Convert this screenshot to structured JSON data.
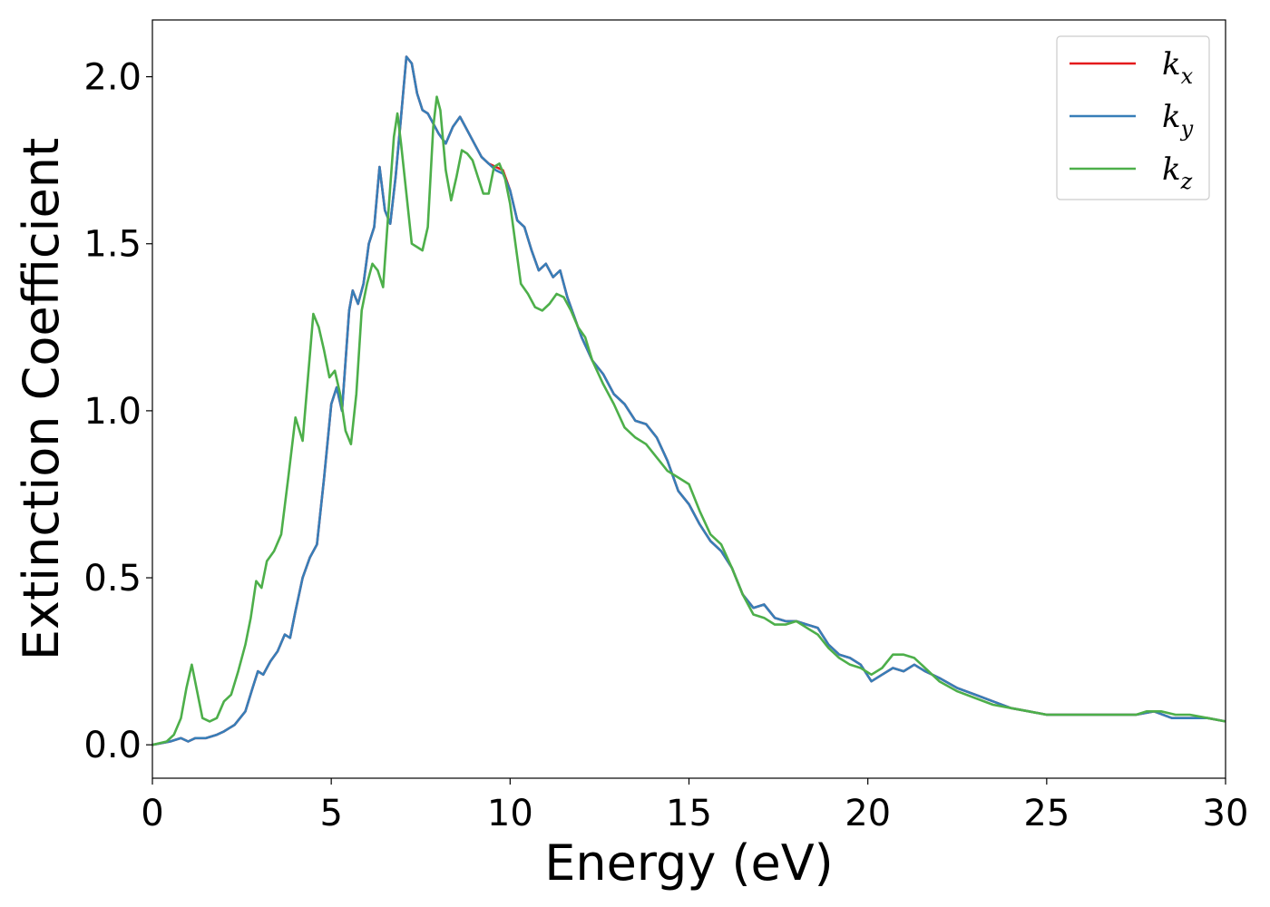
{
  "chart_data": {
    "type": "line",
    "xlabel": "Energy (eV)",
    "ylabel": "Extinction Coefficient",
    "xlim": [
      0,
      30
    ],
    "ylim": [
      -0.1,
      2.17
    ],
    "xticks": [
      0,
      5,
      10,
      15,
      20,
      25,
      30
    ],
    "xtick_labels": [
      "0",
      "5",
      "10",
      "15",
      "20",
      "25",
      "30"
    ],
    "yticks": [
      0.0,
      0.5,
      1.0,
      1.5,
      2.0
    ],
    "ytick_labels": [
      "0.0",
      "0.5",
      "1.0",
      "1.5",
      "2.0"
    ],
    "grid": false,
    "legend_position": "top-right",
    "series": [
      {
        "name": "k_x",
        "label_main": "k",
        "label_sub": "x",
        "color": "#e41a1c",
        "x": [
          0,
          0.5,
          0.8,
          1.0,
          1.2,
          1.5,
          1.8,
          2.0,
          2.3,
          2.6,
          2.8,
          2.95,
          3.1,
          3.3,
          3.5,
          3.7,
          3.85,
          4.0,
          4.2,
          4.4,
          4.6,
          4.8,
          5.0,
          5.15,
          5.3,
          5.5,
          5.6,
          5.75,
          5.9,
          6.05,
          6.2,
          6.35,
          6.5,
          6.65,
          6.8,
          6.95,
          7.1,
          7.25,
          7.4,
          7.55,
          7.7,
          7.85,
          8.0,
          8.2,
          8.4,
          8.6,
          8.8,
          9.0,
          9.2,
          9.4,
          9.6,
          9.8,
          10.0,
          10.2,
          10.4,
          10.6,
          10.8,
          11.0,
          11.2,
          11.4,
          11.6,
          11.8,
          12.0,
          12.3,
          12.6,
          12.9,
          13.2,
          13.5,
          13.8,
          14.1,
          14.4,
          14.7,
          15.0,
          15.3,
          15.6,
          15.9,
          16.2,
          16.5,
          16.8,
          17.1,
          17.4,
          17.7,
          18.0,
          18.3,
          18.6,
          18.9,
          19.2,
          19.5,
          19.8,
          20.1,
          20.4,
          20.7,
          21.0,
          21.3,
          21.6,
          22.0,
          22.5,
          23.0,
          23.5,
          24.0,
          24.5,
          25.0,
          25.5,
          26.0,
          26.5,
          27.0,
          27.5,
          28.0,
          28.5,
          29.0,
          29.5,
          30.0
        ],
        "y": [
          0.0,
          0.01,
          0.02,
          0.01,
          0.02,
          0.02,
          0.03,
          0.04,
          0.06,
          0.1,
          0.17,
          0.22,
          0.21,
          0.25,
          0.28,
          0.33,
          0.32,
          0.4,
          0.5,
          0.56,
          0.6,
          0.8,
          1.02,
          1.07,
          1.0,
          1.3,
          1.36,
          1.32,
          1.38,
          1.5,
          1.55,
          1.73,
          1.6,
          1.56,
          1.7,
          1.88,
          2.06,
          2.04,
          1.95,
          1.9,
          1.89,
          1.86,
          1.83,
          1.8,
          1.85,
          1.88,
          1.84,
          1.8,
          1.76,
          1.74,
          1.73,
          1.72,
          1.66,
          1.57,
          1.55,
          1.48,
          1.42,
          1.44,
          1.4,
          1.42,
          1.34,
          1.28,
          1.22,
          1.15,
          1.11,
          1.05,
          1.02,
          0.97,
          0.96,
          0.92,
          0.85,
          0.76,
          0.72,
          0.66,
          0.61,
          0.58,
          0.53,
          0.45,
          0.41,
          0.42,
          0.38,
          0.37,
          0.37,
          0.36,
          0.35,
          0.3,
          0.27,
          0.26,
          0.24,
          0.19,
          0.21,
          0.23,
          0.22,
          0.24,
          0.22,
          0.2,
          0.17,
          0.15,
          0.13,
          0.11,
          0.1,
          0.09,
          0.09,
          0.09,
          0.09,
          0.09,
          0.09,
          0.1,
          0.08,
          0.08,
          0.08,
          0.07
        ]
      },
      {
        "name": "k_y",
        "label_main": "k",
        "label_sub": "y",
        "color": "#377eb8",
        "x": [
          0,
          0.5,
          0.8,
          1.0,
          1.2,
          1.5,
          1.8,
          2.0,
          2.3,
          2.6,
          2.8,
          2.95,
          3.1,
          3.3,
          3.5,
          3.7,
          3.85,
          4.0,
          4.2,
          4.4,
          4.6,
          4.8,
          5.0,
          5.15,
          5.3,
          5.5,
          5.6,
          5.75,
          5.9,
          6.05,
          6.2,
          6.35,
          6.5,
          6.65,
          6.8,
          6.95,
          7.1,
          7.25,
          7.4,
          7.55,
          7.7,
          7.85,
          8.0,
          8.2,
          8.4,
          8.6,
          8.8,
          9.0,
          9.2,
          9.4,
          9.6,
          9.8,
          10.0,
          10.2,
          10.4,
          10.6,
          10.8,
          11.0,
          11.2,
          11.4,
          11.6,
          11.8,
          12.0,
          12.3,
          12.6,
          12.9,
          13.2,
          13.5,
          13.8,
          14.1,
          14.4,
          14.7,
          15.0,
          15.3,
          15.6,
          15.9,
          16.2,
          16.5,
          16.8,
          17.1,
          17.4,
          17.7,
          18.0,
          18.3,
          18.6,
          18.9,
          19.2,
          19.5,
          19.8,
          20.1,
          20.4,
          20.7,
          21.0,
          21.3,
          21.6,
          22.0,
          22.5,
          23.0,
          23.5,
          24.0,
          24.5,
          25.0,
          25.5,
          26.0,
          26.5,
          27.0,
          27.5,
          28.0,
          28.5,
          29.0,
          29.5,
          30.0
        ],
        "y": [
          0.0,
          0.01,
          0.02,
          0.01,
          0.02,
          0.02,
          0.03,
          0.04,
          0.06,
          0.1,
          0.17,
          0.22,
          0.21,
          0.25,
          0.28,
          0.33,
          0.32,
          0.4,
          0.5,
          0.56,
          0.6,
          0.8,
          1.02,
          1.07,
          1.0,
          1.3,
          1.36,
          1.32,
          1.38,
          1.5,
          1.55,
          1.73,
          1.6,
          1.56,
          1.7,
          1.88,
          2.06,
          2.04,
          1.95,
          1.9,
          1.89,
          1.86,
          1.83,
          1.8,
          1.85,
          1.88,
          1.84,
          1.8,
          1.76,
          1.74,
          1.72,
          1.71,
          1.66,
          1.57,
          1.55,
          1.48,
          1.42,
          1.44,
          1.4,
          1.42,
          1.34,
          1.28,
          1.22,
          1.15,
          1.11,
          1.05,
          1.02,
          0.97,
          0.96,
          0.92,
          0.85,
          0.76,
          0.72,
          0.66,
          0.61,
          0.58,
          0.53,
          0.45,
          0.41,
          0.42,
          0.38,
          0.37,
          0.37,
          0.36,
          0.35,
          0.3,
          0.27,
          0.26,
          0.24,
          0.19,
          0.21,
          0.23,
          0.22,
          0.24,
          0.22,
          0.2,
          0.17,
          0.15,
          0.13,
          0.11,
          0.1,
          0.09,
          0.09,
          0.09,
          0.09,
          0.09,
          0.09,
          0.1,
          0.08,
          0.08,
          0.08,
          0.07
        ]
      },
      {
        "name": "k_z",
        "label_main": "k",
        "label_sub": "z",
        "color": "#4daf4a",
        "x": [
          0,
          0.4,
          0.6,
          0.8,
          0.95,
          1.1,
          1.25,
          1.4,
          1.6,
          1.8,
          2.0,
          2.2,
          2.4,
          2.6,
          2.75,
          2.9,
          3.05,
          3.2,
          3.4,
          3.6,
          3.8,
          4.0,
          4.2,
          4.35,
          4.5,
          4.65,
          4.8,
          4.95,
          5.1,
          5.25,
          5.4,
          5.55,
          5.7,
          5.85,
          6.0,
          6.15,
          6.3,
          6.45,
          6.6,
          6.75,
          6.85,
          6.95,
          7.1,
          7.25,
          7.4,
          7.55,
          7.7,
          7.85,
          7.95,
          8.05,
          8.2,
          8.35,
          8.5,
          8.65,
          8.8,
          8.95,
          9.1,
          9.25,
          9.4,
          9.55,
          9.7,
          9.85,
          10.0,
          10.15,
          10.3,
          10.5,
          10.7,
          10.9,
          11.1,
          11.3,
          11.5,
          11.7,
          11.9,
          12.1,
          12.3,
          12.6,
          12.9,
          13.2,
          13.5,
          13.8,
          14.1,
          14.4,
          14.7,
          15.0,
          15.3,
          15.6,
          15.9,
          16.2,
          16.5,
          16.8,
          17.1,
          17.4,
          17.7,
          18.0,
          18.3,
          18.6,
          18.9,
          19.2,
          19.5,
          19.8,
          20.1,
          20.4,
          20.7,
          21.0,
          21.3,
          21.6,
          22.0,
          22.5,
          23.0,
          23.5,
          24.0,
          24.5,
          25.0,
          25.5,
          26.0,
          26.5,
          27.0,
          27.5,
          27.8,
          28.2,
          28.6,
          29.0,
          29.5,
          30.0
        ],
        "y": [
          0.0,
          0.01,
          0.03,
          0.08,
          0.17,
          0.24,
          0.16,
          0.08,
          0.07,
          0.08,
          0.13,
          0.15,
          0.22,
          0.3,
          0.38,
          0.49,
          0.47,
          0.55,
          0.58,
          0.63,
          0.8,
          0.98,
          0.91,
          1.1,
          1.29,
          1.25,
          1.18,
          1.1,
          1.12,
          1.05,
          0.94,
          0.9,
          1.05,
          1.3,
          1.38,
          1.44,
          1.42,
          1.37,
          1.6,
          1.82,
          1.89,
          1.8,
          1.65,
          1.5,
          1.49,
          1.48,
          1.55,
          1.85,
          1.94,
          1.9,
          1.72,
          1.63,
          1.7,
          1.78,
          1.77,
          1.75,
          1.7,
          1.65,
          1.65,
          1.73,
          1.74,
          1.7,
          1.62,
          1.5,
          1.38,
          1.35,
          1.31,
          1.3,
          1.32,
          1.35,
          1.34,
          1.3,
          1.25,
          1.22,
          1.15,
          1.08,
          1.02,
          0.95,
          0.92,
          0.9,
          0.86,
          0.82,
          0.8,
          0.78,
          0.7,
          0.63,
          0.6,
          0.53,
          0.45,
          0.39,
          0.38,
          0.36,
          0.36,
          0.37,
          0.35,
          0.33,
          0.29,
          0.26,
          0.24,
          0.23,
          0.21,
          0.23,
          0.27,
          0.27,
          0.26,
          0.23,
          0.19,
          0.16,
          0.14,
          0.12,
          0.11,
          0.1,
          0.09,
          0.09,
          0.09,
          0.09,
          0.09,
          0.09,
          0.1,
          0.1,
          0.09,
          0.09,
          0.08,
          0.07
        ]
      }
    ]
  }
}
